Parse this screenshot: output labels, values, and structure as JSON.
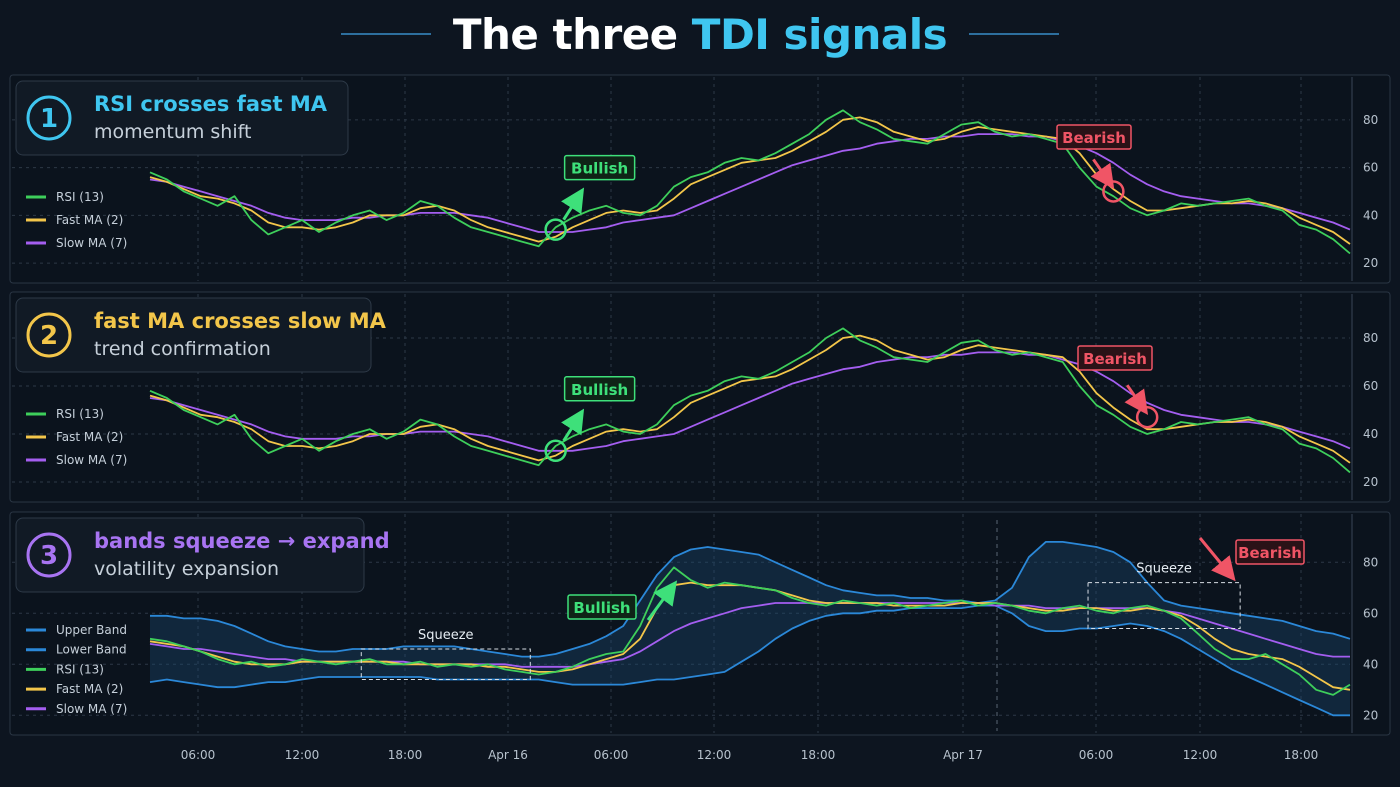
{
  "title": {
    "main": "The three",
    "accent": "TDI signals"
  },
  "colors": {
    "rsi": "#3ecf5b",
    "fast": "#f3c64a",
    "slow": "#a45ef0",
    "band": "#2b88d8",
    "bull": "#3ee07a",
    "bear": "#f05566",
    "cyan": "#3fc6f0",
    "yellow": "#f3c64a",
    "purple": "#a874f2"
  },
  "panels": [
    {
      "number": "1",
      "title": "RSI crosses fast MA",
      "subtitle": "momentum shift",
      "legend": [
        "RSI (13)",
        "Fast MA (2)",
        "Slow MA (7)"
      ],
      "bullish_label": "Bullish",
      "bearish_label": "Bearish"
    },
    {
      "number": "2",
      "title": "fast MA crosses slow MA",
      "subtitle": "trend confirmation",
      "legend": [
        "RSI (13)",
        "Fast MA (2)",
        "Slow MA (7)"
      ],
      "bullish_label": "Bullish",
      "bearish_label": "Bearish"
    },
    {
      "number": "3",
      "title": "bands squeeze → expand",
      "subtitle": "volatility expansion",
      "legend": [
        "Upper Band",
        "Lower Band",
        "RSI (13)",
        "Fast MA (2)",
        "Slow MA (7)"
      ],
      "bullish_label": "Bullish",
      "bearish_label": "Bearish",
      "squeeze_label": "Squeeze"
    }
  ],
  "chart_data": {
    "type": "line",
    "ylim": [
      15,
      95
    ],
    "y_ticks": [
      20,
      40,
      60,
      80
    ],
    "x_tick_labels": [
      "06:00",
      "12:00",
      "18:00",
      "Apr 16",
      "06:00",
      "12:00",
      "18:00",
      "Apr 17",
      "06:00",
      "12:00",
      "18:00"
    ],
    "x": [
      0,
      1,
      2,
      3,
      4,
      5,
      6,
      7,
      8,
      9,
      10,
      11,
      12,
      13,
      14,
      15,
      16,
      17,
      18,
      19,
      20,
      21,
      22,
      23,
      24,
      25,
      26,
      27,
      28,
      29,
      30,
      31,
      32,
      33,
      34,
      35,
      36,
      37,
      38,
      39,
      40,
      41,
      42,
      43,
      44,
      45,
      46,
      47,
      48,
      49,
      50,
      51,
      52,
      53,
      54,
      55,
      56,
      57,
      58,
      59,
      60,
      61,
      62,
      63,
      64,
      65,
      66,
      67,
      68,
      69,
      70,
      71
    ],
    "series": [
      {
        "name": "RSI (13)",
        "values": [
          58,
          55,
          50,
          47,
          44,
          48,
          38,
          32,
          35,
          38,
          33,
          37,
          40,
          42,
          38,
          41,
          46,
          44,
          39,
          35,
          33,
          31,
          29,
          27,
          35,
          39,
          42,
          44,
          41,
          40,
          44,
          52,
          56,
          58,
          62,
          64,
          63,
          66,
          70,
          74,
          80,
          84,
          79,
          76,
          72,
          71,
          70,
          74,
          78,
          79,
          75,
          73,
          74,
          72,
          70,
          60,
          52,
          48,
          43,
          40,
          42,
          45,
          44,
          45,
          46,
          47,
          44,
          42,
          36,
          34,
          30,
          24
        ]
      },
      {
        "name": "Fast MA (2)",
        "values": [
          56,
          54,
          51,
          48,
          47,
          45,
          42,
          37,
          35,
          35,
          34,
          35,
          37,
          40,
          40,
          40,
          43,
          44,
          42,
          38,
          35,
          33,
          31,
          29,
          31,
          35,
          38,
          41,
          42,
          41,
          42,
          47,
          53,
          56,
          59,
          62,
          63,
          64,
          67,
          71,
          75,
          80,
          81,
          79,
          75,
          73,
          71,
          72,
          75,
          77,
          76,
          75,
          74,
          73,
          72,
          66,
          57,
          51,
          46,
          42,
          42,
          43,
          44,
          45,
          45,
          46,
          45,
          43,
          39,
          36,
          33,
          28
        ]
      },
      {
        "name": "Slow MA (7)",
        "values": [
          55,
          54,
          52,
          50,
          48,
          46,
          44,
          41,
          39,
          38,
          38,
          38,
          39,
          39,
          40,
          40,
          41,
          41,
          41,
          40,
          39,
          37,
          35,
          33,
          33,
          33,
          34,
          35,
          37,
          38,
          39,
          40,
          43,
          46,
          49,
          52,
          55,
          58,
          61,
          63,
          65,
          67,
          68,
          70,
          71,
          72,
          72,
          73,
          73,
          74,
          74,
          74,
          73,
          73,
          71,
          69,
          66,
          62,
          57,
          53,
          50,
          48,
          47,
          46,
          45,
          45,
          44,
          43,
          41,
          39,
          37,
          34
        ]
      },
      {
        "name": "Upper Band",
        "values": [
          59,
          59,
          58,
          58,
          57,
          55,
          52,
          49,
          47,
          46,
          45,
          45,
          46,
          46,
          46,
          47,
          47,
          47,
          47,
          46,
          45,
          44,
          43,
          43,
          44,
          46,
          48,
          51,
          55,
          65,
          75,
          82,
          85,
          86,
          85,
          84,
          83,
          80,
          77,
          74,
          71,
          69,
          68,
          67,
          67,
          66,
          66,
          65,
          65,
          64,
          65,
          70,
          82,
          88,
          88,
          87,
          86,
          84,
          80,
          72,
          65,
          63,
          62,
          61,
          60,
          59,
          58,
          57,
          55,
          53,
          52,
          50
        ]
      },
      {
        "name": "Lower Band",
        "values": [
          33,
          34,
          33,
          32,
          31,
          31,
          32,
          33,
          33,
          34,
          35,
          35,
          35,
          35,
          35,
          35,
          35,
          34,
          34,
          34,
          34,
          34,
          34,
          34,
          33,
          32,
          32,
          32,
          32,
          33,
          34,
          34,
          35,
          36,
          37,
          41,
          45,
          50,
          54,
          57,
          59,
          60,
          60,
          61,
          61,
          62,
          62,
          62,
          62,
          63,
          63,
          60,
          55,
          53,
          53,
          54,
          54,
          55,
          56,
          55,
          53,
          50,
          46,
          42,
          38,
          35,
          32,
          29,
          26,
          23,
          20,
          20
        ]
      },
      {
        "name": "RSI (13)",
        "values": [
          50,
          49,
          47,
          45,
          42,
          40,
          41,
          39,
          40,
          42,
          41,
          40,
          41,
          42,
          40,
          40,
          41,
          39,
          40,
          39,
          40,
          38,
          37,
          36,
          37,
          39,
          42,
          44,
          45,
          55,
          70,
          78,
          73,
          70,
          72,
          71,
          70,
          69,
          66,
          64,
          63,
          65,
          64,
          63,
          64,
          62,
          63,
          64,
          65,
          63,
          64,
          63,
          61,
          60,
          62,
          63,
          61,
          60,
          62,
          63,
          61,
          58,
          52,
          46,
          42,
          42,
          44,
          40,
          36,
          30,
          28,
          32
        ]
      },
      {
        "name": "Fast MA (2)",
        "values": [
          49,
          48,
          47,
          45,
          43,
          41,
          40,
          40,
          40,
          41,
          41,
          41,
          41,
          41,
          41,
          40,
          40,
          40,
          40,
          40,
          39,
          39,
          38,
          37,
          37,
          38,
          40,
          42,
          44,
          50,
          62,
          71,
          72,
          71,
          71,
          71,
          70,
          69,
          67,
          65,
          64,
          64,
          64,
          64,
          63,
          63,
          63,
          63,
          64,
          64,
          64,
          63,
          62,
          61,
          61,
          62,
          62,
          61,
          61,
          62,
          61,
          59,
          55,
          50,
          46,
          44,
          43,
          42,
          39,
          35,
          31,
          30
        ]
      },
      {
        "name": "Slow MA (7)",
        "values": [
          48,
          47,
          46,
          46,
          45,
          44,
          43,
          42,
          42,
          41,
          41,
          41,
          41,
          41,
          41,
          41,
          40,
          40,
          40,
          40,
          40,
          40,
          39,
          39,
          39,
          39,
          40,
          41,
          42,
          45,
          49,
          53,
          56,
          58,
          60,
          62,
          63,
          64,
          64,
          64,
          64,
          64,
          64,
          64,
          64,
          64,
          64,
          64,
          64,
          64,
          63,
          63,
          63,
          62,
          62,
          62,
          62,
          62,
          62,
          62,
          61,
          60,
          58,
          56,
          54,
          52,
          50,
          48,
          46,
          44,
          43,
          43
        ]
      }
    ],
    "signals": [
      {
        "panel": 1,
        "type": "bullish",
        "x": 24,
        "y": 34
      },
      {
        "panel": 1,
        "type": "bearish",
        "x": 57,
        "y": 50
      },
      {
        "panel": 2,
        "type": "bullish",
        "x": 24,
        "y": 33
      },
      {
        "panel": 2,
        "type": "bearish",
        "x": 59,
        "y": 47
      }
    ]
  }
}
